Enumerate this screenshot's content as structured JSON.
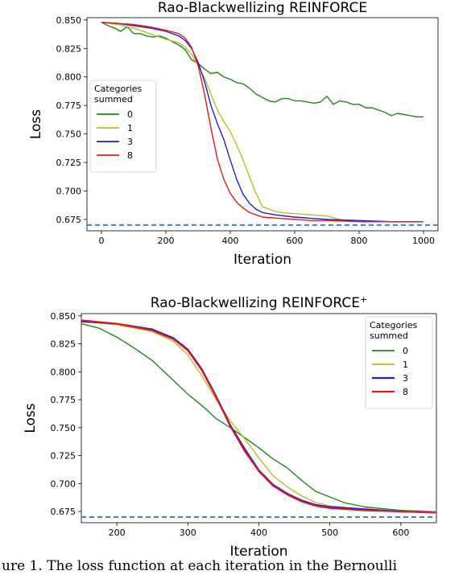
{
  "caption": "ure 1. The loss function at each iteration in the Bernoulli",
  "chart_data": [
    {
      "type": "line",
      "title": "Rao-Blackwellizing REINFORCE",
      "xlabel": "Iteration",
      "ylabel": "Loss",
      "xlim": [
        -45,
        1045
      ],
      "ylim": [
        0.665,
        0.852
      ],
      "xticks": [
        "0",
        "200",
        "400",
        "600",
        "800",
        "1000"
      ],
      "yticks": [
        "0.850",
        "0.825",
        "0.800",
        "0.775",
        "0.750",
        "0.725",
        "0.700",
        "0.675"
      ],
      "grid": false,
      "legend": {
        "title": "Categories summed",
        "title_lines": [
          "Categories",
          "summed"
        ],
        "position": "center-left"
      },
      "reference_line": {
        "y": 0.67,
        "style": "dashed",
        "color": "#3a84c2"
      },
      "series": [
        {
          "name": "0",
          "color": "#1a8a1a",
          "x": [
            0,
            20,
            40,
            60,
            80,
            100,
            120,
            140,
            160,
            180,
            200,
            220,
            240,
            260,
            280,
            300,
            320,
            340,
            360,
            380,
            400,
            420,
            440,
            460,
            480,
            500,
            520,
            540,
            560,
            580,
            600,
            620,
            640,
            660,
            680,
            700,
            720,
            740,
            760,
            780,
            800,
            820,
            840,
            860,
            880,
            900,
            920,
            940,
            960,
            980,
            1000
          ],
          "y": [
            0.848,
            0.845,
            0.843,
            0.84,
            0.844,
            0.838,
            0.838,
            0.836,
            0.835,
            0.836,
            0.834,
            0.831,
            0.828,
            0.824,
            0.815,
            0.812,
            0.807,
            0.803,
            0.804,
            0.8,
            0.798,
            0.795,
            0.794,
            0.79,
            0.785,
            0.782,
            0.779,
            0.778,
            0.781,
            0.781,
            0.779,
            0.779,
            0.778,
            0.777,
            0.778,
            0.783,
            0.776,
            0.779,
            0.778,
            0.776,
            0.776,
            0.773,
            0.773,
            0.771,
            0.769,
            0.766,
            0.768,
            0.767,
            0.766,
            0.765,
            0.765
          ]
        },
        {
          "name": "1",
          "color": "#bcbd22",
          "x": [
            0,
            50,
            100,
            150,
            200,
            240,
            260,
            280,
            300,
            320,
            340,
            360,
            380,
            400,
            420,
            440,
            460,
            480,
            500,
            540,
            560,
            600,
            650,
            700,
            750,
            800,
            900,
            1000
          ],
          "y": [
            0.848,
            0.846,
            0.843,
            0.838,
            0.833,
            0.83,
            0.826,
            0.82,
            0.81,
            0.799,
            0.785,
            0.771,
            0.761,
            0.752,
            0.74,
            0.727,
            0.712,
            0.698,
            0.686,
            0.682,
            0.681,
            0.68,
            0.679,
            0.678,
            0.674,
            0.673,
            0.673,
            0.673
          ]
        },
        {
          "name": "3",
          "color": "#1f1fd6",
          "x": [
            0,
            50,
            100,
            150,
            200,
            240,
            260,
            280,
            300,
            320,
            340,
            360,
            380,
            400,
            420,
            440,
            460,
            480,
            500,
            540,
            600,
            650,
            700,
            800,
            900,
            1000
          ],
          "y": [
            0.848,
            0.847,
            0.845,
            0.843,
            0.84,
            0.836,
            0.832,
            0.825,
            0.813,
            0.796,
            0.775,
            0.759,
            0.745,
            0.727,
            0.71,
            0.697,
            0.689,
            0.684,
            0.681,
            0.679,
            0.677,
            0.676,
            0.675,
            0.674,
            0.673,
            0.673
          ]
        },
        {
          "name": "8",
          "color": "#e8181c",
          "x": [
            0,
            50,
            100,
            150,
            200,
            240,
            260,
            280,
            300,
            320,
            340,
            360,
            380,
            400,
            420,
            440,
            460,
            480,
            500,
            550,
            600,
            650,
            700,
            800,
            900,
            1000
          ],
          "y": [
            0.848,
            0.847,
            0.846,
            0.844,
            0.841,
            0.838,
            0.834,
            0.826,
            0.81,
            0.785,
            0.755,
            0.728,
            0.71,
            0.698,
            0.69,
            0.685,
            0.681,
            0.679,
            0.677,
            0.676,
            0.675,
            0.674,
            0.674,
            0.673,
            0.673,
            0.673
          ]
        }
      ]
    },
    {
      "type": "line",
      "title": "Rao-Blackwellizing REINFORCE",
      "title_superscript": "+",
      "xlabel": "Iteration",
      "ylabel": "Loss",
      "xlim": [
        150,
        650
      ],
      "ylim": [
        0.665,
        0.852
      ],
      "xticks": [
        "200",
        "300",
        "400",
        "500",
        "600"
      ],
      "yticks": [
        "0.850",
        "0.825",
        "0.800",
        "0.775",
        "0.750",
        "0.725",
        "0.700",
        "0.675"
      ],
      "grid": false,
      "legend": {
        "title": "Categories summed",
        "title_lines": [
          "Categories",
          "summed"
        ],
        "position": "upper-right"
      },
      "reference_line": {
        "y": 0.67,
        "style": "dashed",
        "color": "#3a84c2"
      },
      "series": [
        {
          "name": "0",
          "color": "#1a8a1a",
          "x": [
            150,
            175,
            200,
            225,
            250,
            275,
            300,
            325,
            340,
            360,
            380,
            400,
            420,
            440,
            460,
            480,
            500,
            520,
            550,
            600,
            650
          ],
          "y": [
            0.843,
            0.839,
            0.831,
            0.821,
            0.81,
            0.795,
            0.78,
            0.767,
            0.758,
            0.75,
            0.741,
            0.732,
            0.722,
            0.714,
            0.703,
            0.693,
            0.688,
            0.683,
            0.679,
            0.676,
            0.675
          ]
        },
        {
          "name": "1",
          "color": "#bcbd22",
          "x": [
            150,
            200,
            250,
            280,
            300,
            320,
            340,
            360,
            380,
            400,
            420,
            440,
            460,
            480,
            500,
            550,
            600,
            650
          ],
          "y": [
            0.845,
            0.842,
            0.836,
            0.827,
            0.815,
            0.796,
            0.775,
            0.756,
            0.74,
            0.723,
            0.707,
            0.697,
            0.689,
            0.683,
            0.68,
            0.677,
            0.675,
            0.675
          ]
        },
        {
          "name": "3",
          "color": "#1f1fd6",
          "x": [
            150,
            200,
            250,
            280,
            300,
            320,
            340,
            360,
            380,
            400,
            420,
            440,
            460,
            480,
            500,
            550,
            600,
            650
          ],
          "y": [
            0.845,
            0.843,
            0.838,
            0.83,
            0.82,
            0.802,
            0.778,
            0.752,
            0.731,
            0.712,
            0.699,
            0.691,
            0.685,
            0.681,
            0.679,
            0.677,
            0.675,
            0.674
          ]
        },
        {
          "name": "8",
          "color": "#e8181c",
          "x": [
            150,
            200,
            250,
            280,
            300,
            320,
            340,
            360,
            380,
            400,
            420,
            440,
            460,
            480,
            500,
            550,
            600,
            650
          ],
          "y": [
            0.846,
            0.843,
            0.837,
            0.829,
            0.819,
            0.801,
            0.777,
            0.751,
            0.729,
            0.711,
            0.698,
            0.69,
            0.684,
            0.68,
            0.678,
            0.676,
            0.675,
            0.674
          ]
        }
      ]
    }
  ]
}
